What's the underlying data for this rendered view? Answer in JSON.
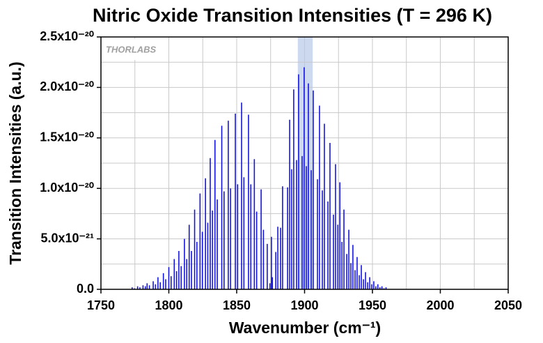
{
  "chart_data": {
    "type": "stick",
    "title": "Nitric Oxide Transition Intensities (T = 296 K)",
    "x_label": "Wavenumber (cm⁻¹)",
    "y_label": "Transition Intensities (a.u.)",
    "watermark": "THORLABS",
    "highlight": [
      1895,
      1906
    ],
    "highlight_color": "#cdd9ef",
    "grid": true,
    "minor_grid": true,
    "xlim": [
      1750,
      2050
    ],
    "xticks": [
      1750,
      1800,
      1850,
      1900,
      1950,
      2000,
      2050
    ],
    "ylim": [
      0,
      2.5e-20
    ],
    "yticks": [
      {
        "value": 0,
        "label": "0.0"
      },
      {
        "value": 5e-21,
        "label": "5.0x10⁻²¹"
      },
      {
        "value": 1e-20,
        "label": "1.0x10⁻²⁰"
      },
      {
        "value": 1.5e-20,
        "label": "1.5x10⁻²⁰"
      },
      {
        "value": 2e-20,
        "label": "2.0x10⁻²⁰"
      },
      {
        "value": 2.5e-20,
        "label": "2.5x10⁻²⁰"
      }
    ],
    "series": [
      {
        "color": "#1414e0",
        "x": [
          1773,
          1777,
          1781,
          1784,
          1788.5,
          1792,
          1796,
          1800,
          1804,
          1807.4,
          1811.5,
          1815,
          1819,
          1823,
          1827,
          1830.5,
          1834,
          1839,
          1843.8,
          1849,
          1853.6,
          1858.7,
          1863,
          1868,
          1875.6,
          1774.7,
          1778.7,
          1782.7,
          1785.7,
          1790.2,
          1793.7,
          1797.7,
          1801.7,
          1805.7,
          1809.1,
          1813.2,
          1816.7,
          1820.7,
          1824.7,
          1828.7,
          1832.2,
          1835.7,
          1840.7,
          1845.5,
          1850.7,
          1855.3,
          1860.4,
          1864.7,
          1869.7,
          1872.5,
          1874.5,
          1876.3,
          1880.3,
          1883.8,
          1889,
          1892,
          1895.6,
          1899.7,
          1902.8,
          1906.4,
          1911,
          1914.6,
          1918.7,
          1922.8,
          1926,
          1929,
          1932.6,
          1935.6,
          1938.7,
          1941.8,
          1944.9,
          1948,
          1951,
          1954,
          1957,
          1960,
          1878.8,
          1882.3,
          1887.5,
          1890.5,
          1894.1,
          1898.2,
          1901.3,
          1904.9,
          1909.5,
          1913.1,
          1917.2,
          1921.3,
          1924.5,
          1927.5,
          1931.1,
          1934.1,
          1937.2,
          1940.3,
          1943.4,
          1946.5,
          1949.5,
          1952.5,
          1955.5,
          1958.5
        ],
        "values": [
          2e-22,
          3e-22,
          4e-22,
          6e-22,
          8e-22,
          1.2e-21,
          1.6e-21,
          2.2e-21,
          3e-21,
          3.8e-21,
          5e-21,
          6.4e-21,
          7.9e-21,
          9.5e-21,
          1.1e-20,
          1.3e-20,
          1.48e-20,
          1.62e-20,
          1.67e-20,
          1.74e-20,
          1.85e-20,
          1.73e-20,
          1.29e-20,
          9.9e-21,
          5.2e-21,
          1e-22,
          2e-22,
          3e-22,
          4e-22,
          5e-22,
          7e-22,
          1e-21,
          1.3e-21,
          1.8e-21,
          2.3e-21,
          3e-21,
          3.8e-21,
          4.7e-21,
          5.7e-21,
          6.6e-21,
          7.8e-21,
          8.9e-21,
          9.7e-21,
          1e-20,
          1.04e-20,
          1.11e-20,
          1.04e-20,
          7.7e-21,
          5.9e-21,
          4.5e-21,
          6e-22,
          1.2e-21,
          6.2e-21,
          1.02e-20,
          1.68e-20,
          1.98e-20,
          2.13e-20,
          2.2e-20,
          2.04e-20,
          1.97e-20,
          1.82e-20,
          1.64e-20,
          1.45e-20,
          1.24e-20,
          1.06e-20,
          7.9e-21,
          5.9e-21,
          4.4e-21,
          3.2e-21,
          2.4e-21,
          1.7e-21,
          1.2e-21,
          8e-22,
          5e-22,
          3e-22,
          2e-22,
          3.7e-21,
          6.1e-21,
          1.01e-20,
          1.19e-20,
          1.28e-20,
          1.32e-20,
          1.22e-20,
          1.18e-20,
          1.09e-20,
          9.8e-21,
          8.7e-21,
          7.4e-21,
          6.4e-21,
          4.7e-21,
          3.5e-21,
          2.6e-21,
          1.9e-21,
          1.4e-21,
          1e-21,
          7e-22,
          5e-22,
          3e-22,
          2e-22,
          1e-22
        ]
      }
    ]
  }
}
